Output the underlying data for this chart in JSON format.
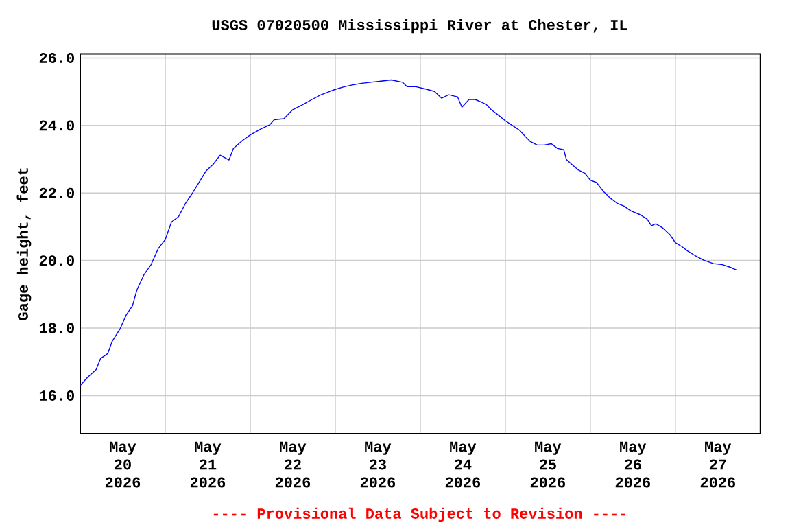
{
  "chart_data": {
    "type": "line",
    "title": "USGS 07020500 Mississippi River at Chester, IL",
    "ylabel": "Gage height, feet",
    "annotations": [
      "---- Provisional Data Subject to Revision ----"
    ],
    "xlim": [
      "2026-05-20T00:00",
      "2026-05-28T00:00"
    ],
    "ylim": [
      14.87,
      26.12
    ],
    "xticks": [
      {
        "value": "2026-05-20T12:00",
        "label": "May 20 2026"
      },
      {
        "value": "2026-05-21T00:00",
        "label": null
      },
      {
        "value": "2026-05-21T12:00",
        "label": "May 21 2026"
      },
      {
        "value": "2026-05-22T00:00",
        "label": null
      },
      {
        "value": "2026-05-22T12:00",
        "label": "May 22 2026"
      },
      {
        "value": "2026-05-23T00:00",
        "label": null
      },
      {
        "value": "2026-05-23T12:00",
        "label": "May 23 2026"
      },
      {
        "value": "2026-05-24T00:00",
        "label": null
      },
      {
        "value": "2026-05-24T12:00",
        "label": "May 24 2026"
      },
      {
        "value": "2026-05-25T00:00",
        "label": null
      },
      {
        "value": "2026-05-25T12:00",
        "label": "May 25 2026"
      },
      {
        "value": "2026-05-26T00:00",
        "label": null
      },
      {
        "value": "2026-05-26T12:00",
        "label": "May 26 2026"
      },
      {
        "value": "2026-05-27T00:00",
        "label": null
      },
      {
        "value": "2026-05-27T12:00",
        "label": "May 27 2026"
      }
    ],
    "yticks": [
      {
        "value": 16,
        "label": "16.0"
      },
      {
        "value": 18,
        "label": "18.0"
      },
      {
        "value": 20,
        "label": "20.0"
      },
      {
        "value": 22,
        "label": "22.0"
      },
      {
        "value": 24,
        "label": "24.0"
      },
      {
        "value": 26,
        "label": "26.0"
      }
    ],
    "grid": true,
    "marker": "none",
    "line_style": "solid",
    "series": [
      {
        "color": "#0000ff",
        "x": [
          "2026-05-20T00:00",
          "2026-05-20T02:00",
          "2026-05-20T04:30",
          "2026-05-20T05:45",
          "2026-05-20T07:45",
          "2026-05-20T09:00",
          "2026-05-20T11:15",
          "2026-05-20T13:00",
          "2026-05-20T14:45",
          "2026-05-20T16:00",
          "2026-05-20T18:00",
          "2026-05-20T20:00",
          "2026-05-20T22:00",
          "2026-05-21T00:00",
          "2026-05-21T01:45",
          "2026-05-21T03:45",
          "2026-05-21T05:45",
          "2026-05-21T07:30",
          "2026-05-21T09:30",
          "2026-05-21T11:30",
          "2026-05-21T13:30",
          "2026-05-21T15:30",
          "2026-05-21T18:00",
          "2026-05-21T19:15",
          "2026-05-21T21:45",
          "2026-05-22T00:00",
          "2026-05-22T03:00",
          "2026-05-22T05:30",
          "2026-05-22T06:45",
          "2026-05-22T09:30",
          "2026-05-22T12:00",
          "2026-05-22T14:30",
          "2026-05-22T17:15",
          "2026-05-22T19:45",
          "2026-05-22T22:15",
          "2026-05-23T00:00",
          "2026-05-23T02:15",
          "2026-05-23T04:45",
          "2026-05-23T07:30",
          "2026-05-23T10:00",
          "2026-05-23T12:30",
          "2026-05-23T15:45",
          "2026-05-23T19:00",
          "2026-05-23T20:15",
          "2026-05-23T22:45",
          "2026-05-24T01:30",
          "2026-05-24T04:00",
          "2026-05-24T06:00",
          "2026-05-24T08:00",
          "2026-05-24T10:30",
          "2026-05-24T11:45",
          "2026-05-24T13:45",
          "2026-05-24T15:30",
          "2026-05-24T17:30",
          "2026-05-24T18:45",
          "2026-05-24T20:00",
          "2026-05-24T22:00",
          "2026-05-25T00:00",
          "2026-05-25T02:00",
          "2026-05-25T04:00",
          "2026-05-25T05:45",
          "2026-05-25T07:00",
          "2026-05-25T09:00",
          "2026-05-25T11:00",
          "2026-05-25T13:00",
          "2026-05-25T14:45",
          "2026-05-25T16:30",
          "2026-05-25T17:15",
          "2026-05-25T18:45",
          "2026-05-25T20:30",
          "2026-05-25T22:30",
          "2026-05-26T00:00",
          "2026-05-26T01:45",
          "2026-05-26T03:45",
          "2026-05-26T05:45",
          "2026-05-26T07:30",
          "2026-05-26T09:30",
          "2026-05-26T11:30",
          "2026-05-26T14:00",
          "2026-05-26T16:00",
          "2026-05-26T17:15",
          "2026-05-26T18:30",
          "2026-05-26T20:30",
          "2026-05-26T22:30",
          "2026-05-27T00:00",
          "2026-05-27T01:45",
          "2026-05-27T03:30",
          "2026-05-27T05:30",
          "2026-05-27T08:00",
          "2026-05-27T10:45",
          "2026-05-27T13:15",
          "2026-05-27T15:15",
          "2026-05-27T17:15"
        ],
        "values": [
          16.3,
          16.53,
          16.77,
          17.1,
          17.24,
          17.6,
          17.98,
          18.39,
          18.66,
          19.13,
          19.58,
          19.88,
          20.35,
          20.62,
          21.14,
          21.3,
          21.7,
          21.97,
          22.31,
          22.65,
          22.85,
          23.12,
          22.98,
          23.32,
          23.55,
          23.72,
          23.9,
          24.02,
          24.17,
          24.2,
          24.47,
          24.6,
          24.76,
          24.9,
          25.0,
          25.07,
          25.14,
          25.2,
          25.25,
          25.28,
          25.31,
          25.35,
          25.28,
          25.15,
          25.15,
          25.08,
          25.01,
          24.81,
          24.91,
          24.85,
          24.54,
          24.77,
          24.77,
          24.68,
          24.61,
          24.47,
          24.31,
          24.14,
          24.0,
          23.86,
          23.66,
          23.53,
          23.42,
          23.42,
          23.46,
          23.32,
          23.28,
          22.99,
          22.85,
          22.69,
          22.58,
          22.38,
          22.31,
          22.04,
          21.84,
          21.7,
          21.61,
          21.47,
          21.36,
          21.23,
          21.03,
          21.09,
          20.96,
          20.76,
          20.53,
          20.42,
          20.28,
          20.15,
          20.01,
          19.91,
          19.88,
          19.81,
          19.72
        ]
      }
    ]
  }
}
